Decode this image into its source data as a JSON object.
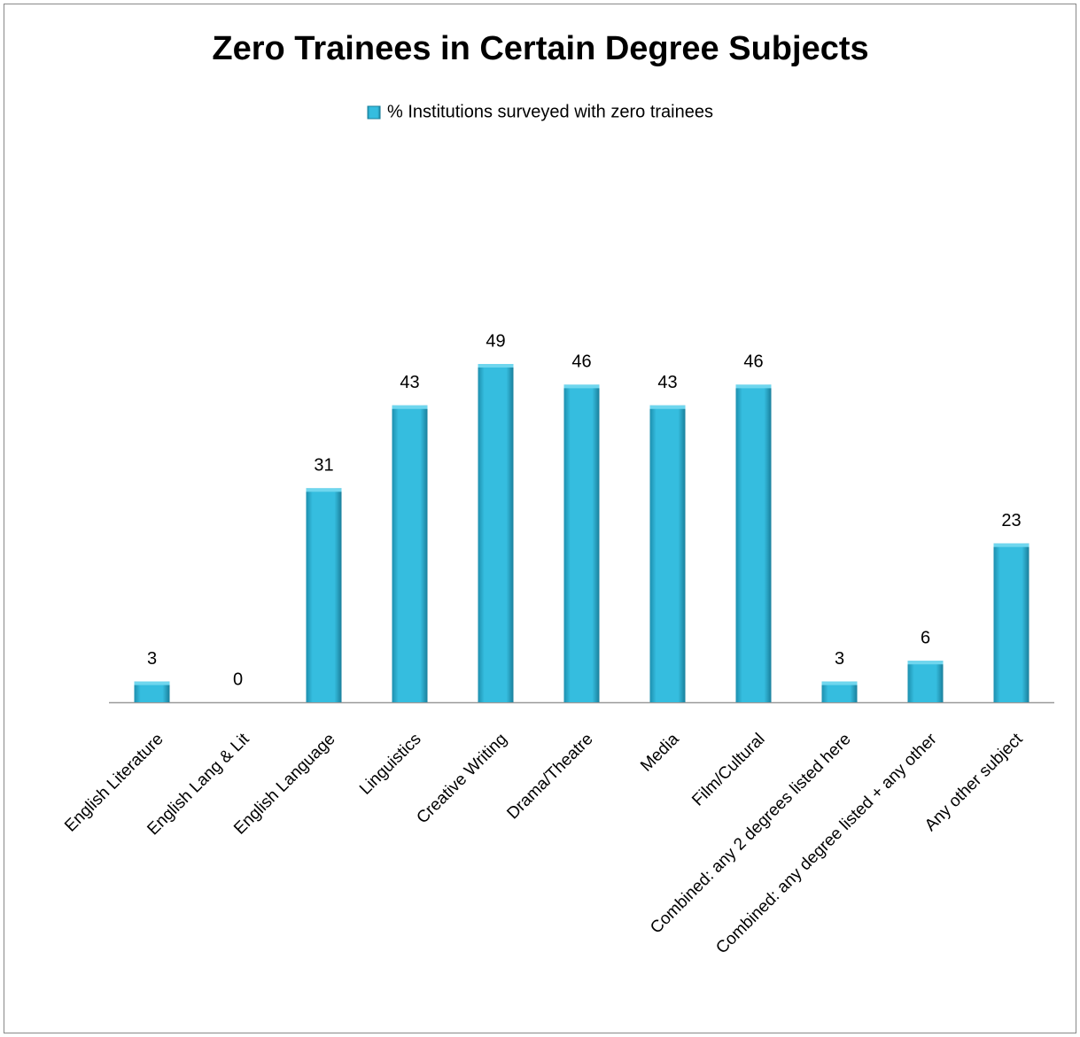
{
  "chart_data": {
    "type": "bar",
    "title": "Zero Trainees in Certain Degree Subjects",
    "categories": [
      "English Literature",
      "English Lang & Lit",
      "English Language",
      "Linguistics",
      "Creative Writing",
      "Drama/Theatre",
      "Media",
      "Film/Cultural",
      "Combined: any 2 degrees listed here",
      "Combined: any degree listed + any other",
      "Any other subject"
    ],
    "series": [
      {
        "name": "% Institutions surveyed with zero trainees",
        "color": "#31b4d6",
        "values": [
          3,
          0,
          31,
          43,
          49,
          46,
          43,
          46,
          3,
          6,
          23
        ]
      }
    ],
    "legend": "top"
  }
}
